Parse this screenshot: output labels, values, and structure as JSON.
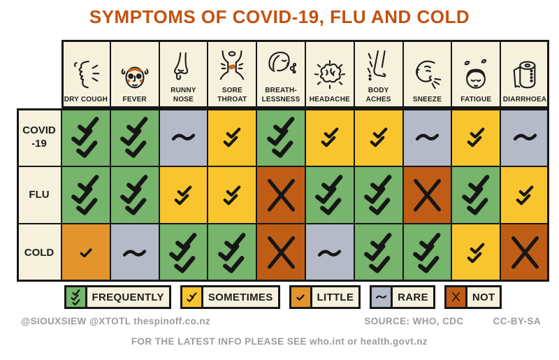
{
  "title": "SYMPTOMS OF COVID-19, FLU AND COLD",
  "colors": {
    "title": "#c4510f",
    "ink": "#1c1c1c",
    "cream": "#f6f1dd",
    "page_bg": "#ffffff",
    "footer_text": "#9b9b9b",
    "accent_orange": "#c9651c"
  },
  "chart_data": {
    "type": "heatmap",
    "title": "SYMPTOMS OF COVID-19, FLU AND COLD",
    "columns": [
      "DRY COUGH",
      "FEVER",
      "RUNNY NOSE",
      "SORE THROAT",
      "BREATH-LESSNESS",
      "HEADACHE",
      "BODY ACHES",
      "SNEEZE",
      "FATIGUE",
      "DIARRHOEA"
    ],
    "column_icons": [
      "face-coughing-icon",
      "fever-face-icon",
      "runny-nose-icon",
      "sore-throat-icon",
      "breathless-face-icon",
      "brain-icon",
      "leg-ache-icon",
      "sneezing-face-icon",
      "tired-face-icon",
      "toilet-paper-icon"
    ],
    "rows": [
      "COVID-19",
      "FLU",
      "COLD"
    ],
    "row_display": [
      "COVID\n-19",
      "FLU",
      "COLD"
    ],
    "values": [
      [
        "frequently",
        "frequently",
        "rare",
        "sometimes",
        "frequently",
        "sometimes",
        "sometimes",
        "rare",
        "sometimes",
        "rare"
      ],
      [
        "frequently",
        "frequently",
        "sometimes",
        "sometimes",
        "not",
        "frequently",
        "frequently",
        "not",
        "frequently",
        "sometimes"
      ],
      [
        "little",
        "rare",
        "frequently",
        "frequently",
        "not",
        "rare",
        "frequently",
        "frequently",
        "sometimes",
        "not"
      ]
    ],
    "scale": [
      "frequently",
      "sometimes",
      "little",
      "rare",
      "not"
    ],
    "legend_position": "bottom"
  },
  "legend": {
    "items": [
      {
        "key": "frequently",
        "label": "FREQUENTLY",
        "color": "#76b56b",
        "marks": "3-checks"
      },
      {
        "key": "sometimes",
        "label": "SOMETIMES",
        "color": "#f9c52e",
        "marks": "2-checks"
      },
      {
        "key": "little",
        "label": "LITTLE",
        "color": "#e2952c",
        "marks": "1-check"
      },
      {
        "key": "rare",
        "label": "RARE",
        "color": "#b4bac7",
        "marks": "tilde"
      },
      {
        "key": "not",
        "label": "NOT",
        "color": "#bf5d16",
        "marks": "x"
      }
    ]
  },
  "footer": {
    "credits": "@SIOUXSIEW @XTOTL thespinoff.co.nz",
    "source": "SOURCE:  WHO, CDC",
    "license": "CC-BY-SA",
    "info": "FOR THE LATEST INFO PLEASE SEE  who.int  or  health.govt.nz"
  }
}
